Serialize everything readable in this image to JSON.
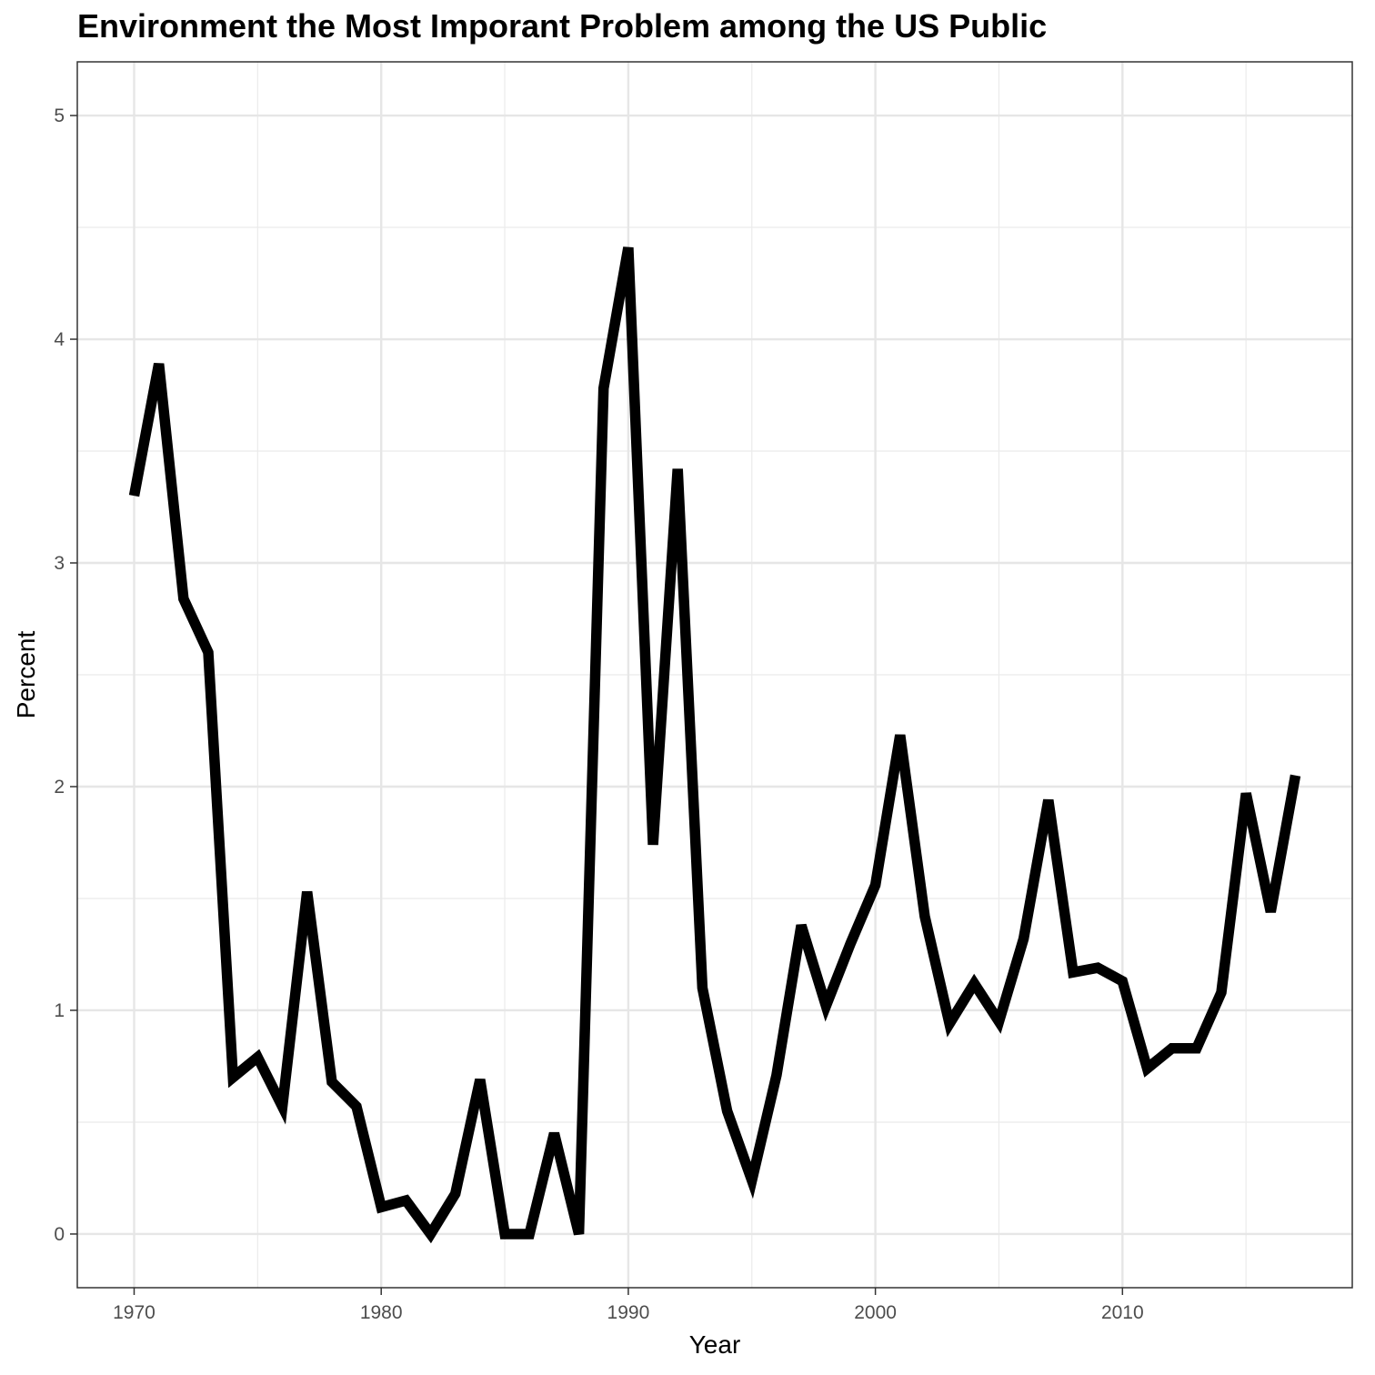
{
  "chart_data": {
    "type": "line",
    "title": "Environment the Most Imporant Problem among the US Public",
    "xlabel": "Year",
    "ylabel": "Percent",
    "xlim": [
      1967.7,
      2019.3
    ],
    "ylim": [
      -0.24,
      5.24
    ],
    "x_ticks": [
      1970,
      1980,
      1990,
      2000,
      2010
    ],
    "y_ticks": [
      0,
      1,
      2,
      3,
      4,
      5
    ],
    "grid": true,
    "line_color": "#000000",
    "series": [
      {
        "x": [
          1970,
          1971,
          1972,
          1973,
          1974,
          1975,
          1976,
          1977,
          1978,
          1979,
          1980,
          1981,
          1982,
          1983,
          1984,
          1985,
          1986,
          1987,
          1988,
          1989,
          1990,
          1991,
          1992,
          1993,
          1994,
          1995,
          1996,
          1997,
          1998,
          1999,
          2000,
          2001,
          2002,
          2003,
          2004,
          2005,
          2006,
          2007,
          2008,
          2009,
          2010,
          2011,
          2012,
          2013,
          2014,
          2015,
          2016,
          2017
        ],
        "values": [
          3.3,
          3.89,
          2.84,
          2.6,
          0.7,
          0.79,
          0.57,
          1.53,
          0.68,
          0.57,
          0.12,
          0.15,
          0.0,
          0.18,
          0.69,
          0.0,
          0.0,
          0.45,
          0.0,
          3.78,
          4.41,
          1.74,
          3.42,
          1.1,
          0.55,
          0.24,
          0.71,
          1.38,
          1.02,
          1.3,
          1.56,
          2.23,
          1.42,
          0.94,
          1.12,
          0.95,
          1.32,
          1.94,
          1.17,
          1.19,
          1.13,
          0.74,
          0.83,
          0.83,
          1.08,
          1.97,
          1.44,
          2.05
        ]
      }
    ]
  }
}
